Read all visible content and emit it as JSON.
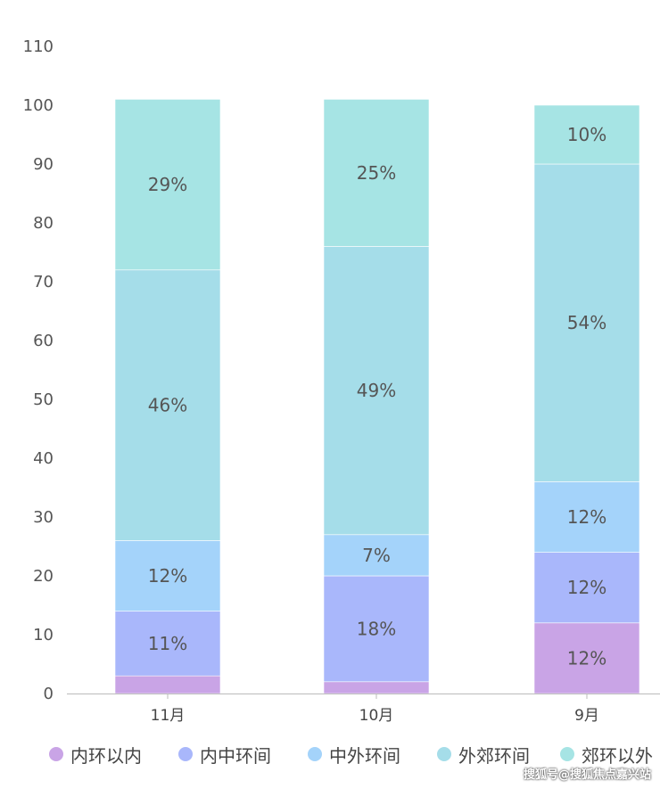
{
  "chart_data": {
    "type": "bar",
    "stacked": true,
    "categories": [
      "11月",
      "10月",
      "9月"
    ],
    "ylim": [
      0,
      110
    ],
    "yticks": [
      0,
      10,
      20,
      30,
      40,
      50,
      60,
      70,
      80,
      90,
      100,
      110
    ],
    "series": [
      {
        "name": "内环以内",
        "color": "#c9a4e6",
        "values": [
          3,
          2,
          12
        ],
        "labels": [
          "",
          "",
          "12%"
        ]
      },
      {
        "name": "内中环间",
        "color": "#a9b7fb",
        "values": [
          11,
          18,
          12
        ],
        "labels": [
          "11%",
          "18%",
          "12%"
        ]
      },
      {
        "name": "中外环间",
        "color": "#a4d3fa",
        "values": [
          12,
          7,
          12
        ],
        "labels": [
          "12%",
          "7%",
          "12%"
        ]
      },
      {
        "name": "外郊环间",
        "color": "#a5dde9",
        "values": [
          46,
          49,
          54
        ],
        "labels": [
          "46%",
          "49%",
          "54%"
        ]
      },
      {
        "name": "郊环以外",
        "color": "#a6e4e4",
        "values": [
          29,
          25,
          10
        ],
        "labels": [
          "29%",
          "25%",
          "10%"
        ]
      }
    ],
    "legend_position": "bottom",
    "grid": false
  },
  "watermark": "搜狐号@搜狐焦点嘉兴站"
}
